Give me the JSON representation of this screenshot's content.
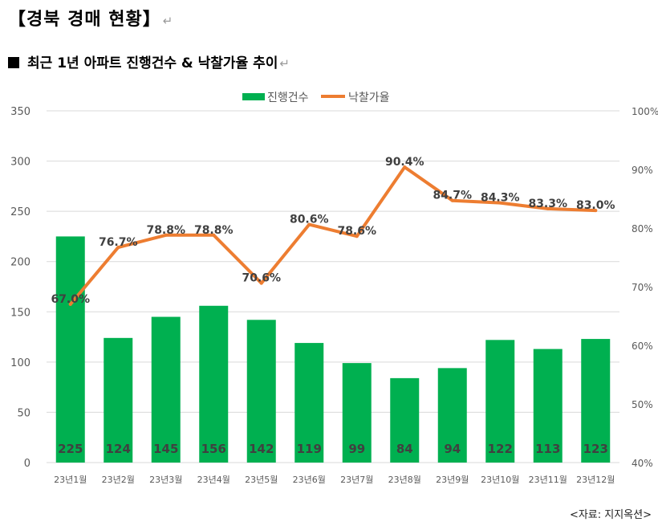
{
  "header": {
    "title": "【경북 경매 현황】",
    "subtitle": "최근 1년 아파트 진행건수 & 낙찰가율 추이",
    "return_mark": "↵"
  },
  "source": "<자료: 지지옥션>",
  "colors": {
    "bar": "#00b050",
    "line": "#ed7d31",
    "grid": "#d9d9d9",
    "axis_text": "#595959",
    "bar_label": "#404040"
  },
  "chart_data": {
    "type": "bar",
    "categories": [
      "23년1월",
      "23년2월",
      "23년3월",
      "23년4월",
      "23년5월",
      "23년6월",
      "23년7월",
      "23년8월",
      "23년9월",
      "23년10월",
      "23년11월",
      "23년12월"
    ],
    "series": [
      {
        "name": "진행건수",
        "type": "bar",
        "axis": "left",
        "values": [
          225,
          124,
          145,
          156,
          142,
          119,
          99,
          84,
          94,
          122,
          113,
          123
        ],
        "labels": [
          "225",
          "124",
          "145",
          "156",
          "142",
          "119",
          "99",
          "84",
          "94",
          "122",
          "113",
          "123"
        ]
      },
      {
        "name": "낙찰가율",
        "type": "line",
        "axis": "right",
        "values": [
          67.0,
          76.7,
          78.8,
          78.8,
          70.6,
          80.6,
          78.6,
          90.4,
          84.7,
          84.3,
          83.3,
          83.0
        ],
        "labels": [
          "67.0%",
          "76.7%",
          "78.8%",
          "78.8%",
          "70.6%",
          "80.6%",
          "78.6%",
          "90.4%",
          "84.7%",
          "84.3%",
          "83.3%",
          "83.0%"
        ]
      }
    ],
    "y_left": {
      "min": 0,
      "max": 350,
      "ticks": [
        "0",
        "50",
        "100",
        "150",
        "200",
        "250",
        "300",
        "350"
      ]
    },
    "y_right": {
      "min": 40,
      "max": 100,
      "ticks": [
        "40%",
        "50%",
        "60%",
        "70%",
        "80%",
        "90%",
        "100%"
      ]
    },
    "legend_position": "top",
    "grid": true
  }
}
